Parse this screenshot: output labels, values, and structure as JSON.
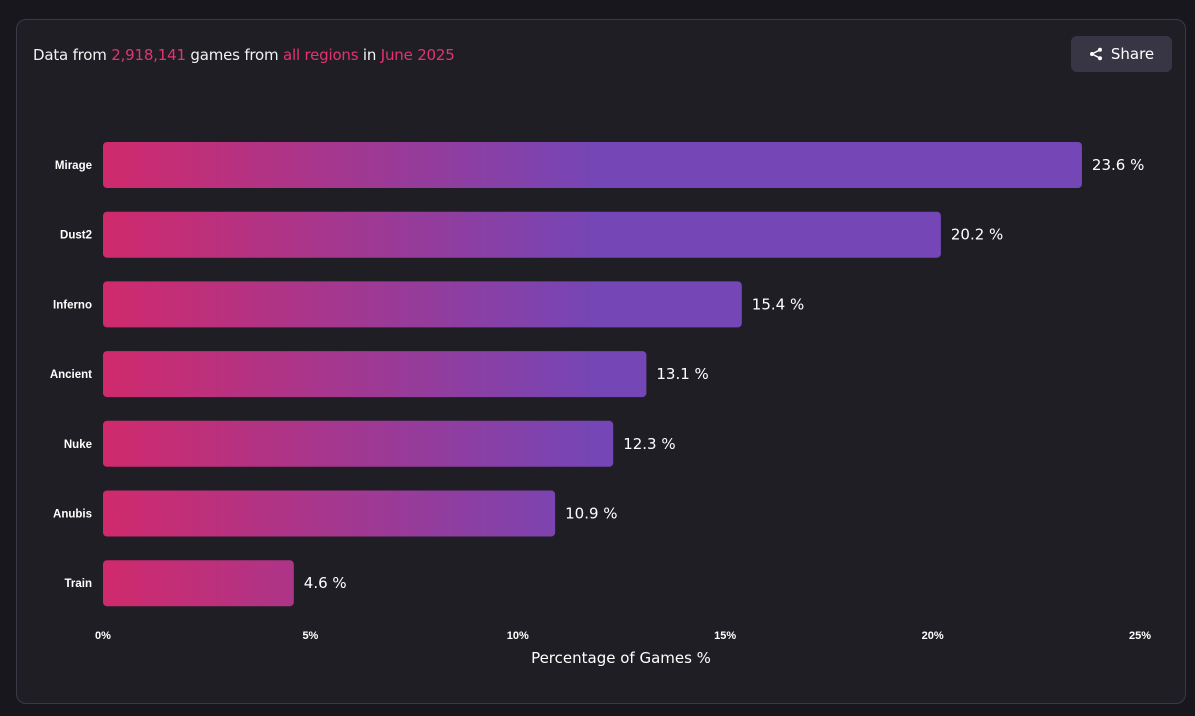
{
  "header": {
    "prefix": "Data from ",
    "games_count": "2,918,141",
    "middle": " games from ",
    "region": "all regions",
    "in_text": " in ",
    "period": "June 2025"
  },
  "share_button": {
    "label": "Share",
    "icon": "share-icon"
  },
  "colors": {
    "accent": "#e5336f",
    "bar_start": "#d02a6c",
    "bar_end": "#7446b6",
    "card_bg": "#1f1e24",
    "page_bg": "#18171d"
  },
  "chart_data": {
    "type": "bar",
    "orientation": "horizontal",
    "categories": [
      "Mirage",
      "Dust2",
      "Inferno",
      "Ancient",
      "Nuke",
      "Anubis",
      "Train"
    ],
    "values": [
      23.6,
      20.2,
      15.4,
      13.1,
      12.3,
      10.9,
      4.6
    ],
    "value_labels": [
      "23.6 %",
      "20.2 %",
      "15.4 %",
      "13.1 %",
      "12.3 %",
      "10.9 %",
      "4.6 %"
    ],
    "xlabel": "Percentage of Games %",
    "ylabel": "",
    "xlim": [
      0,
      25
    ],
    "x_ticks": [
      0,
      5,
      10,
      15,
      20,
      25
    ],
    "x_tick_labels": [
      "0%",
      "5%",
      "10%",
      "15%",
      "20%",
      "25%"
    ],
    "grid": false,
    "legend": "none"
  }
}
